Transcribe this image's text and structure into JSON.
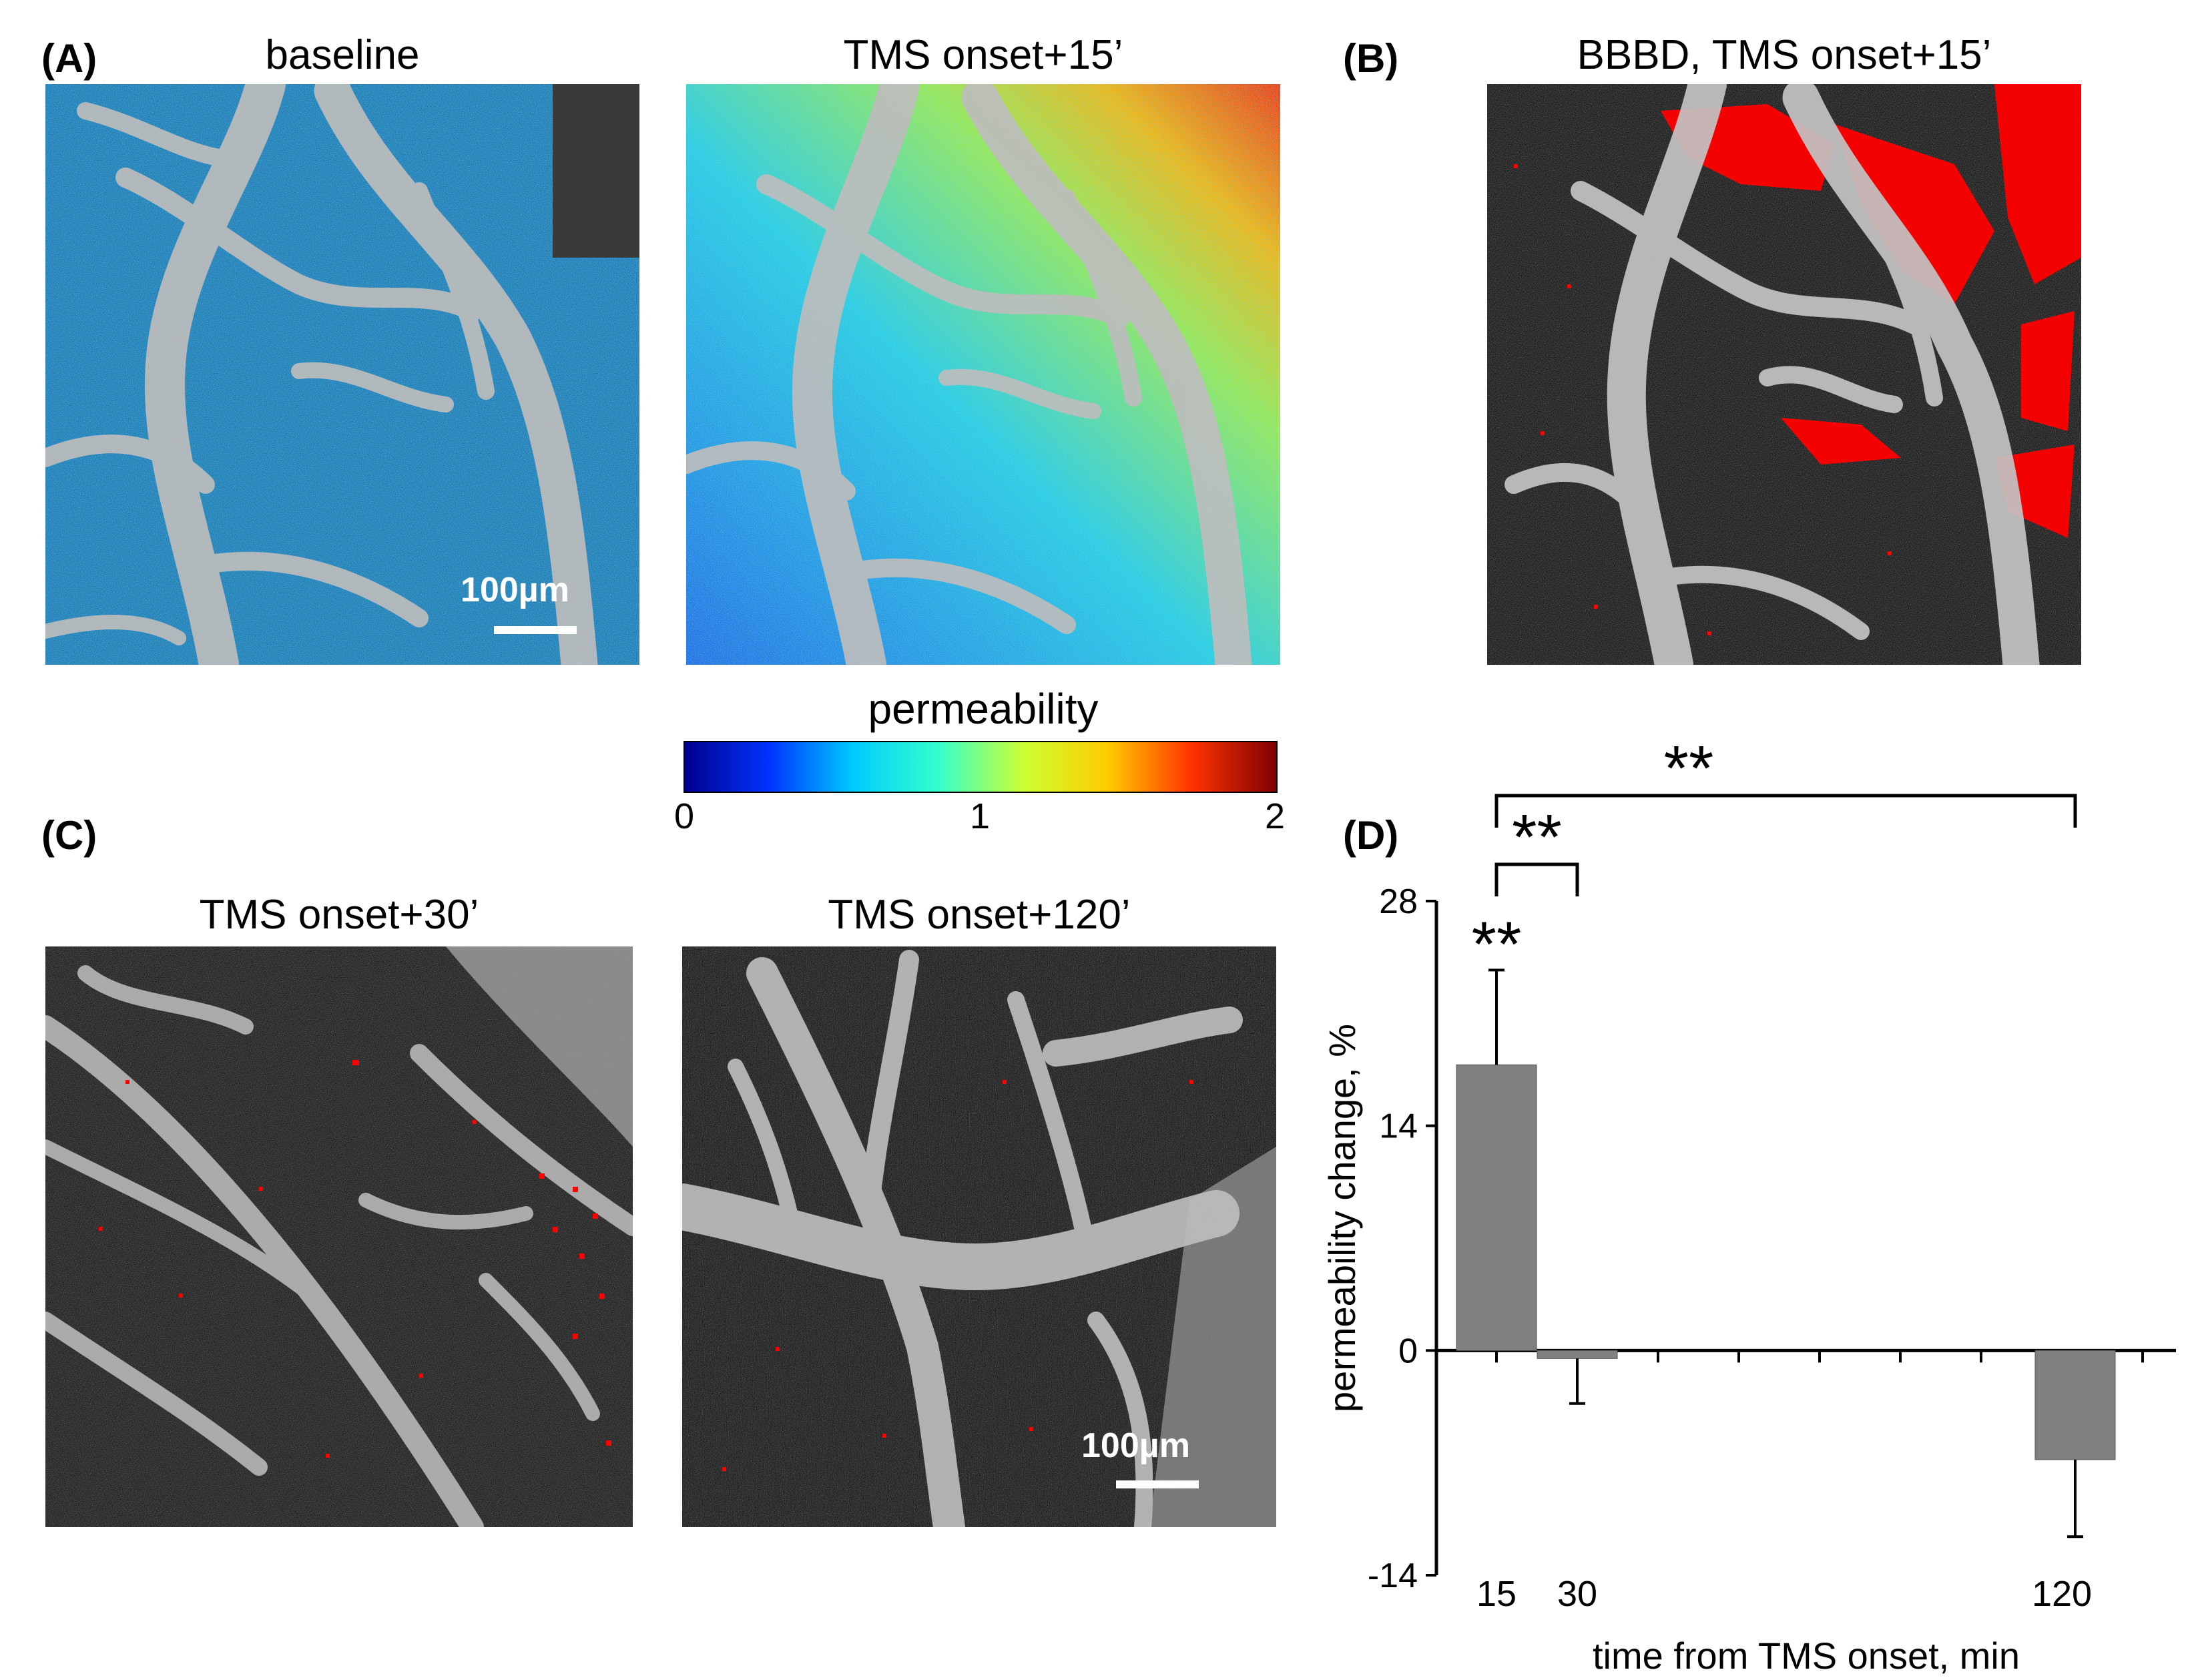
{
  "panels": {
    "A": {
      "label": "(A)",
      "titles": [
        "baseline",
        "TMS onset+15’"
      ],
      "scalebar": "100µm"
    },
    "B": {
      "label": "(B)",
      "title": "BBBD, TMS onset+15’"
    },
    "C": {
      "label": "(C)",
      "titles": [
        "TMS onset+30’",
        "TMS onset+120’"
      ],
      "scalebar": "100µm"
    },
    "D": {
      "label": "(D)"
    }
  },
  "colorbar": {
    "label": "permeability",
    "ticks": [
      "0",
      "1",
      "2"
    ],
    "colors": [
      "#00008f",
      "#0033ff",
      "#00ccff",
      "#33ffcc",
      "#ccff33",
      "#ffcc00",
      "#ff3300",
      "#800000"
    ]
  },
  "colors": {
    "bar": "#808080",
    "leak": "#ff0000"
  },
  "chart_data": {
    "type": "bar",
    "categories": [
      "15",
      "30",
      "120"
    ],
    "x": [
      15,
      30,
      120
    ],
    "values": [
      17.8,
      -0.5,
      -6.8
    ],
    "errors": [
      5.9,
      2.8,
      4.8
    ],
    "xlabel": "time from TMS onset, min",
    "ylabel": "permeability change, %",
    "ylim": [
      -14,
      28
    ],
    "yticks": [
      "-14",
      "0",
      "14",
      "28"
    ],
    "xlim": [
      15,
      135
    ],
    "minor_xticks": [
      15,
      30,
      45,
      60,
      75,
      90,
      105,
      120,
      135
    ],
    "significance": {
      "bar_marker": "**",
      "brackets": [
        {
          "from": 15,
          "to": 30,
          "label": "**"
        },
        {
          "from": 15,
          "to": 120,
          "label": "**"
        }
      ]
    },
    "grid": false
  }
}
